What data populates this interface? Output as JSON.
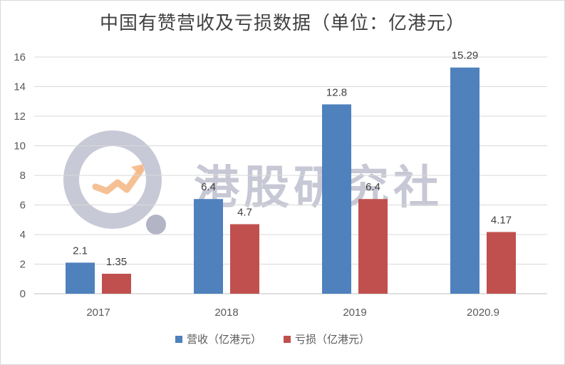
{
  "chart_data": {
    "type": "bar",
    "title": "中国有赞营收及亏损数据（单位：亿港元）",
    "categories": [
      "2017",
      "2018",
      "2019",
      "2020.9"
    ],
    "series": [
      {
        "name": "营收（亿港元）",
        "values": [
          2.1,
          6.4,
          12.8,
          15.29
        ],
        "labels": [
          "2.1",
          "6.4",
          "12.8",
          "15.29"
        ],
        "color": "#4f81bd"
      },
      {
        "name": "亏损（亿港元）",
        "values": [
          1.35,
          4.7,
          6.4,
          4.17
        ],
        "labels": [
          "1.35",
          "4.7",
          "6.4",
          "4.17"
        ],
        "color": "#c0504d"
      }
    ],
    "ylim": [
      0,
      16
    ],
    "yticks": [
      "0",
      "2",
      "4",
      "6",
      "8",
      "10",
      "12",
      "14",
      "16"
    ],
    "grid": true,
    "legend": "bottom"
  },
  "watermark": {
    "text": "港股研究社",
    "color": "#9a9cb4",
    "accent": "#f5b98a"
  }
}
